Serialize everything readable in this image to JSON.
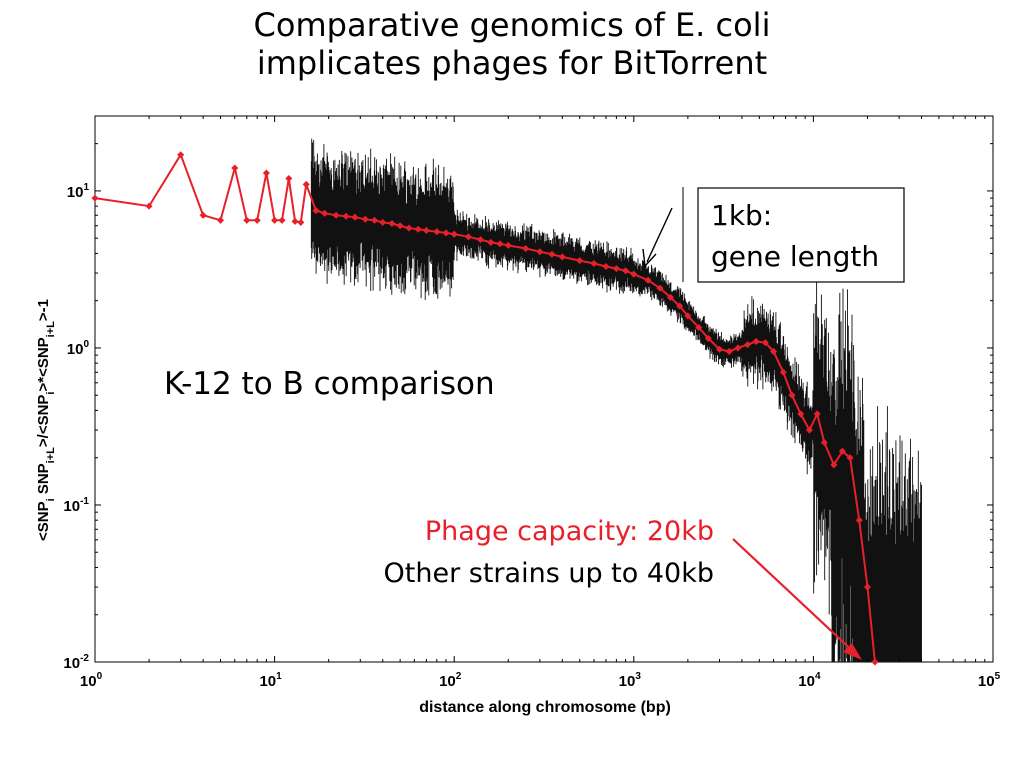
{
  "slide": {
    "title_line1": "Comparative genomics of E. coli",
    "title_line2": "implicates phages for BitTorrent"
  },
  "chart_data": {
    "type": "line",
    "xlabel": "distance along chromosome (bp)",
    "ylabel": "<SNP_i SNP_i+L>/<SNP_i>*<SNP_i+L>-1",
    "x_scale": "log",
    "y_scale": "log",
    "xlim": [
      1,
      100000
    ],
    "ylim": [
      0.01,
      30
    ],
    "grid": false,
    "x_ticks": [
      {
        "value": 1,
        "base": "10",
        "exp": "0"
      },
      {
        "value": 10,
        "base": "10",
        "exp": "1"
      },
      {
        "value": 100,
        "base": "10",
        "exp": "2"
      },
      {
        "value": 1000,
        "base": "10",
        "exp": "3"
      },
      {
        "value": 10000,
        "base": "10",
        "exp": "4"
      },
      {
        "value": 100000,
        "base": "10",
        "exp": "5"
      }
    ],
    "y_ticks": [
      {
        "value": 10,
        "base": "10",
        "exp": "1"
      },
      {
        "value": 1,
        "base": "10",
        "exp": "0"
      },
      {
        "value": 0.1,
        "base": "10",
        "exp": "-1"
      },
      {
        "value": 0.01,
        "base": "10",
        "exp": "-2"
      }
    ],
    "series": [
      {
        "color": "#e8202a",
        "x": [
          1,
          2,
          3,
          4,
          5,
          6,
          7,
          8,
          9,
          10,
          11,
          12,
          13,
          14,
          15,
          17,
          19,
          22,
          25,
          28,
          32,
          36,
          40,
          45,
          50,
          56,
          63,
          70,
          80,
          90,
          100,
          120,
          140,
          160,
          180,
          200,
          250,
          300,
          350,
          400,
          500,
          600,
          700,
          800,
          900,
          1000,
          1200,
          1400,
          1600,
          1800,
          2000,
          2300,
          2600,
          3000,
          3400,
          3800,
          4300,
          4800,
          5400,
          6000,
          6800,
          7600,
          8500,
          9500,
          10500,
          11500,
          13000,
          14500,
          16000,
          18000,
          20000,
          22000
        ],
        "y": [
          9.0,
          8.0,
          17.0,
          7.0,
          6.5,
          14.0,
          6.5,
          6.5,
          13.0,
          6.5,
          6.5,
          12.0,
          6.4,
          6.3,
          11.0,
          7.5,
          7.2,
          7.0,
          6.9,
          6.8,
          6.6,
          6.5,
          6.3,
          6.2,
          6.0,
          5.8,
          5.7,
          5.6,
          5.5,
          5.4,
          5.3,
          5.1,
          4.9,
          4.7,
          4.6,
          4.5,
          4.3,
          4.1,
          3.95,
          3.8,
          3.6,
          3.45,
          3.3,
          3.2,
          3.1,
          2.95,
          2.7,
          2.4,
          2.1,
          1.85,
          1.6,
          1.35,
          1.15,
          0.98,
          0.95,
          1.0,
          1.05,
          1.1,
          1.08,
          0.95,
          0.7,
          0.5,
          0.38,
          0.3,
          0.38,
          0.25,
          0.18,
          0.22,
          0.2,
          0.08,
          0.03,
          0.01
        ]
      }
    ],
    "annotations": [
      {
        "text": "K-12 to B comparison",
        "color": "#000000"
      },
      {
        "text_line1": "1kb:",
        "text_line2": "gene length",
        "color": "#000000"
      },
      {
        "text_line1": "Phage capacity: 20kb",
        "text_line2": "Other strains up to 40kb",
        "color1": "#e8202a",
        "color2": "#000000"
      }
    ]
  }
}
